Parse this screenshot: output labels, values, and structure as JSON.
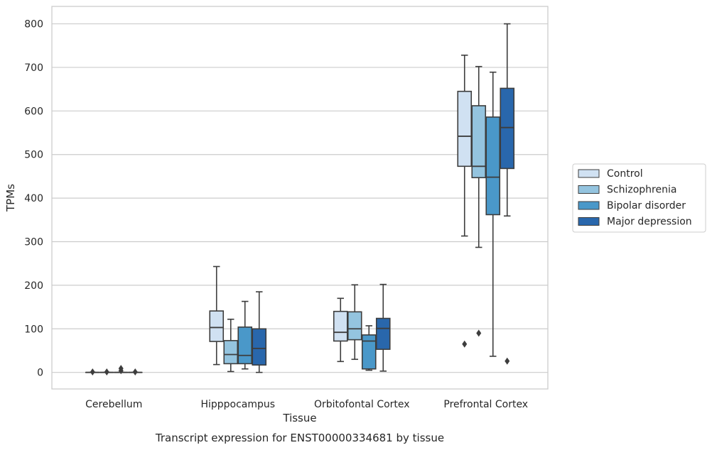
{
  "chart_data": {
    "type": "box",
    "xlabel": "Tissue",
    "ylabel": "TPMs",
    "caption": "Transcript expression for ENST00000334681 by tissue",
    "ylim": [
      -38,
      840
    ],
    "yticks": [
      0,
      100,
      200,
      300,
      400,
      500,
      600,
      700,
      800
    ],
    "grid": "horizontal",
    "legend_position": "right",
    "categories": [
      "Cerebellum",
      "Hipppocampus",
      "Orbitofontal Cortex",
      "Prefrontal Cortex"
    ],
    "series": [
      {
        "name": "Control",
        "color": "#d0e1f2",
        "boxes": [
          {
            "whislo": 0,
            "q1": 0,
            "med": 0,
            "q3": 0,
            "whishi": 0,
            "fliers": [
              1
            ]
          },
          {
            "whislo": 18,
            "q1": 71,
            "med": 103,
            "q3": 141,
            "whishi": 243,
            "fliers": []
          },
          {
            "whislo": 25,
            "q1": 72,
            "med": 92,
            "q3": 140,
            "whishi": 170,
            "fliers": []
          },
          {
            "whislo": 313,
            "q1": 473,
            "med": 542,
            "q3": 645,
            "whishi": 728,
            "fliers": [
              65
            ]
          }
        ]
      },
      {
        "name": "Schizophrenia",
        "color": "#94c4df",
        "boxes": [
          {
            "whislo": 0,
            "q1": 0,
            "med": 0,
            "q3": 0,
            "whishi": 0,
            "fliers": [
              1
            ]
          },
          {
            "whislo": 2,
            "q1": 20,
            "med": 41,
            "q3": 73,
            "whishi": 122,
            "fliers": []
          },
          {
            "whislo": 30,
            "q1": 75,
            "med": 100,
            "q3": 139,
            "whishi": 201,
            "fliers": []
          },
          {
            "whislo": 287,
            "q1": 447,
            "med": 473,
            "q3": 612,
            "whishi": 702,
            "fliers": [
              90
            ]
          }
        ]
      },
      {
        "name": "Bipolar disorder",
        "color": "#4a98c9",
        "boxes": [
          {
            "whislo": 0,
            "q1": 0,
            "med": 0,
            "q3": 0,
            "whishi": 0,
            "fliers": [
              4,
              9
            ]
          },
          {
            "whislo": 8,
            "q1": 20,
            "med": 39,
            "q3": 104,
            "whishi": 163,
            "fliers": []
          },
          {
            "whislo": 5,
            "q1": 8,
            "med": 72,
            "q3": 86,
            "whishi": 107,
            "fliers": []
          },
          {
            "whislo": 37,
            "q1": 362,
            "med": 448,
            "q3": 586,
            "whishi": 689,
            "fliers": []
          }
        ]
      },
      {
        "name": "Major depression",
        "color": "#2967ac",
        "boxes": [
          {
            "whislo": 0,
            "q1": 0,
            "med": 0,
            "q3": 0,
            "whishi": 0,
            "fliers": [
              1
            ]
          },
          {
            "whislo": 0,
            "q1": 17,
            "med": 55,
            "q3": 100,
            "whishi": 185,
            "fliers": []
          },
          {
            "whislo": 3,
            "q1": 53,
            "med": 101,
            "q3": 124,
            "whishi": 202,
            "fliers": []
          },
          {
            "whislo": 359,
            "q1": 468,
            "med": 562,
            "q3": 652,
            "whishi": 800,
            "fliers": [
              26
            ]
          }
        ]
      }
    ]
  }
}
